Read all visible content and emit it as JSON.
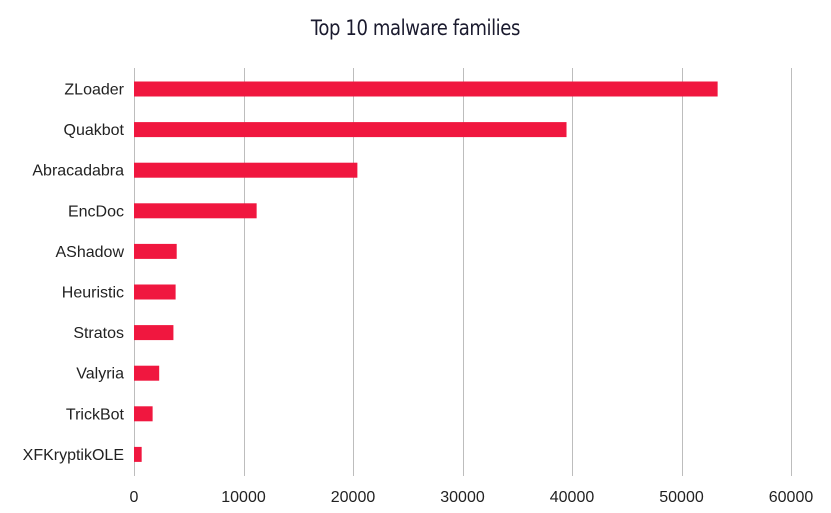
{
  "chart_data": {
    "type": "bar",
    "orientation": "horizontal",
    "title": "Top 10 malware families",
    "xlabel": "",
    "ylabel": "",
    "categories": [
      "ZLoader",
      "Quakbot",
      "Abracadabra",
      "EncDoc",
      "AShadow",
      "Heuristic",
      "Stratos",
      "Valyria",
      "TrickBot",
      "XFKryptikOLE"
    ],
    "values": [
      53300,
      39500,
      20400,
      11200,
      3900,
      3800,
      3600,
      2300,
      1700,
      700
    ],
    "xlim": [
      0,
      60000
    ],
    "xticks": [
      0,
      10000,
      20000,
      30000,
      40000,
      50000,
      60000
    ],
    "xtick_labels": [
      "0",
      "10000",
      "20000",
      "30000",
      "40000",
      "50000",
      "60000"
    ],
    "grid": "vertical",
    "legend": "none",
    "colors": {
      "bar": "#f0173f",
      "grid": "#bdbdbd",
      "text": "#222222"
    }
  }
}
